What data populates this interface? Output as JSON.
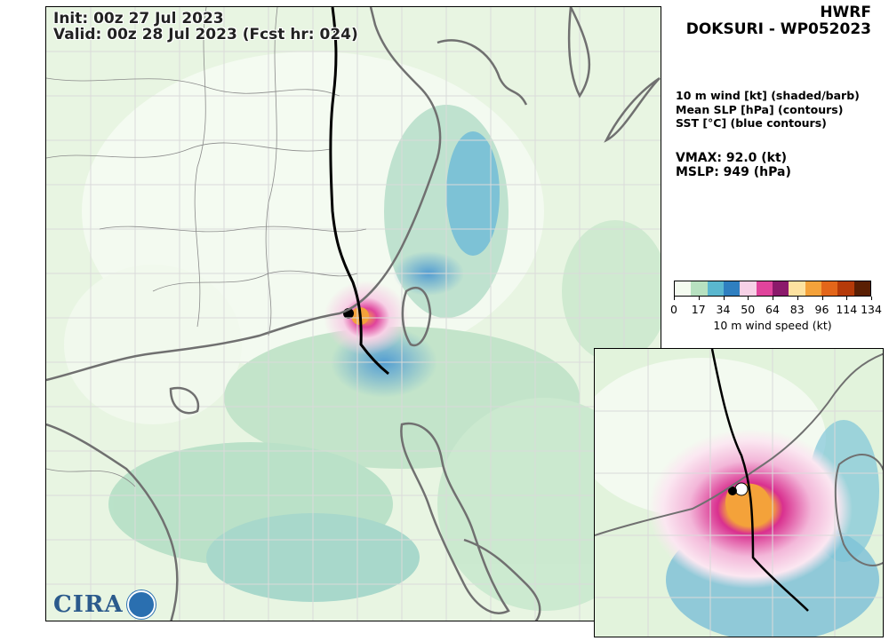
{
  "header": {
    "init_label": "Init:   00z 27 Jul 2023",
    "valid_label": "Valid: 00z 28 Jul 2023 (Fcst hr: 024)",
    "model": "HWRF",
    "storm": "DOKSURI - WP052023"
  },
  "fields": {
    "line1": "10 m wind [kt] (shaded/barb)",
    "line2": "Mean SLP [hPa] (contours)",
    "line3": "SST [°C] (blue contours)"
  },
  "stats": {
    "vmax": "VMAX:  92.0 (kt)",
    "mslp": "MSLP:  949 (hPa)"
  },
  "colorbar": {
    "ticks": [
      "0",
      "17",
      "34",
      "50",
      "64",
      "83",
      "96",
      "114",
      "134"
    ],
    "label": "10 m wind speed (kt)",
    "colors": [
      "#f4fbf0",
      "#b7e1c0",
      "#5ab7cf",
      "#2f7fc0",
      "#f7d1e6",
      "#e0449c",
      "#8b1a6b",
      "#fde2a0",
      "#f4a23a",
      "#e3661a",
      "#b53a09",
      "#5a1f04"
    ]
  },
  "logo": {
    "text": "CIRA"
  },
  "colors": {
    "land_outline": "#707070",
    "track": "#000000",
    "grid": "#dadada"
  }
}
